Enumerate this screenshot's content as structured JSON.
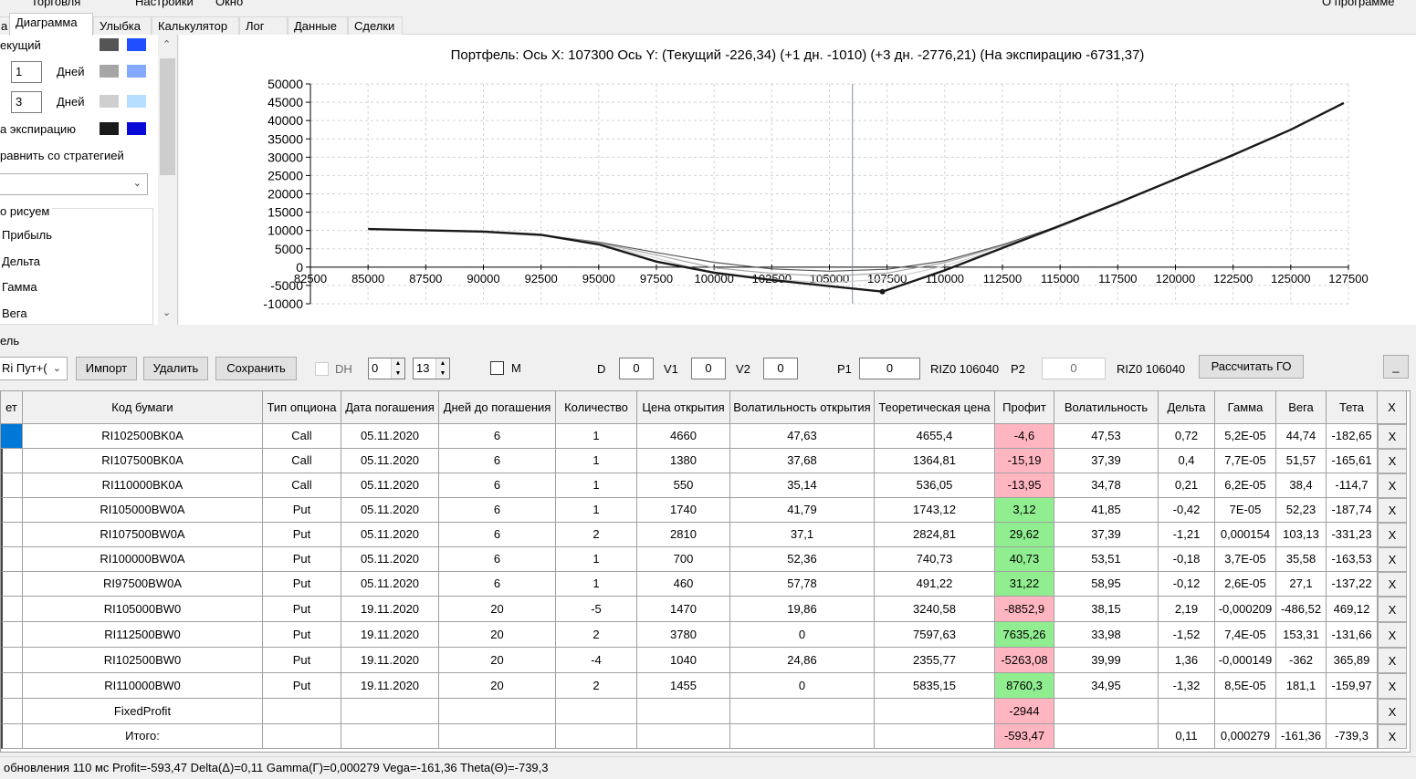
{
  "menu": {
    "items": [
      "Торговля",
      "Настройки",
      "Окно"
    ],
    "about": "О программе"
  },
  "tabs": [
    {
      "label": "а",
      "active": false
    },
    {
      "label": "Диаграмма",
      "active": true
    },
    {
      "label": "Улыбка",
      "active": false
    },
    {
      "label": "Калькулятор",
      "active": false
    },
    {
      "label": "Лог",
      "active": false
    },
    {
      "label": "Данные",
      "active": false
    },
    {
      "label": "Сделки",
      "active": false
    }
  ],
  "left_panel": {
    "current_label": "екущий",
    "days1_value": "1",
    "days_label": "Дней",
    "days2_value": "3",
    "expiry_label": "а экспирацию",
    "compare_label": "равнить со стратегией",
    "compare_select": "",
    "draw_label": "о рисуем",
    "draw_items": [
      "Прибыль",
      "Дельта",
      "Гамма",
      "Вега"
    ],
    "swatches": [
      {
        "a": "#555555",
        "b": "#1f4fff"
      },
      {
        "a": "#a6a6a6",
        "b": "#85a9ff"
      },
      {
        "a": "#cfcfcf",
        "b": "#b6deff"
      },
      {
        "a": "#1a1a1a",
        "b": "#0a0ad8"
      }
    ]
  },
  "chart_title": "Портфель: Ось X: 107300 Ось Y:  (Текущий -226,34)  (+1 дн. -1010)  (+3 дн. -2776,21)  (На экспирацию -6731,37)",
  "chart_data": {
    "type": "line",
    "xlim": [
      82500,
      127500
    ],
    "ylim": [
      -10000,
      50000
    ],
    "x_ticks": [
      "82500",
      "85000",
      "87500",
      "90000",
      "92500",
      "95000",
      "97500",
      "100000",
      "102500",
      "105000",
      "107500",
      "110000",
      "112500",
      "115000",
      "117500",
      "120000",
      "122500",
      "125000",
      "127500"
    ],
    "y_ticks": [
      "50000",
      "45000",
      "40000",
      "35000",
      "30000",
      "25000",
      "20000",
      "15000",
      "10000",
      "5000",
      "0",
      "-5000",
      "-10000"
    ],
    "cursor_x": 106000,
    "series": [
      {
        "color": "#555555",
        "points": [
          [
            85000,
            10400
          ],
          [
            90000,
            9800
          ],
          [
            92500,
            8800
          ],
          [
            95000,
            6800
          ],
          [
            97500,
            4000
          ],
          [
            100000,
            1300
          ],
          [
            102500,
            -500
          ],
          [
            105000,
            -1100
          ],
          [
            107500,
            -600
          ],
          [
            110000,
            1700
          ],
          [
            112500,
            6100
          ],
          [
            115000,
            11300
          ],
          [
            117500,
            17500
          ],
          [
            120000,
            24000
          ],
          [
            122500,
            30600
          ],
          [
            125000,
            37500
          ],
          [
            127300,
            44800
          ]
        ]
      },
      {
        "color": "#a6a6a6",
        "points": [
          [
            85000,
            10400
          ],
          [
            90000,
            9800
          ],
          [
            92500,
            8900
          ],
          [
            95000,
            6600
          ],
          [
            97500,
            3300
          ],
          [
            100000,
            -200
          ],
          [
            102500,
            -1700
          ],
          [
            105000,
            -2500
          ],
          [
            107500,
            -1600
          ],
          [
            110000,
            1200
          ],
          [
            112500,
            5800
          ],
          [
            115000,
            11200
          ],
          [
            117500,
            17400
          ],
          [
            120000,
            24000
          ],
          [
            122500,
            30600
          ],
          [
            125000,
            37500
          ],
          [
            127300,
            44800
          ]
        ]
      },
      {
        "color": "#cfcfcf",
        "points": [
          [
            85000,
            10400
          ],
          [
            90000,
            9800
          ],
          [
            92500,
            9000
          ],
          [
            95000,
            6400
          ],
          [
            97500,
            2500
          ],
          [
            100000,
            -1800
          ],
          [
            102500,
            -3300
          ],
          [
            105000,
            -4300
          ],
          [
            107500,
            -3200
          ],
          [
            110000,
            300
          ],
          [
            112500,
            5200
          ],
          [
            115000,
            10900
          ],
          [
            117500,
            17300
          ],
          [
            120000,
            24000
          ],
          [
            122500,
            30600
          ],
          [
            125000,
            37500
          ],
          [
            127300,
            44800
          ]
        ]
      },
      {
        "color": "#1a1a1a",
        "points": [
          [
            85000,
            10400
          ],
          [
            90000,
            9700
          ],
          [
            92500,
            8800
          ],
          [
            95000,
            6200
          ],
          [
            97500,
            1500
          ],
          [
            100000,
            -1500
          ],
          [
            102500,
            -3500
          ],
          [
            105000,
            -5200
          ],
          [
            107300,
            -6700
          ],
          [
            110000,
            -900
          ],
          [
            112500,
            5200
          ],
          [
            115000,
            11300
          ],
          [
            117500,
            17500
          ],
          [
            120000,
            24000
          ],
          [
            122500,
            30600
          ],
          [
            125000,
            37500
          ],
          [
            127300,
            44800
          ]
        ]
      }
    ]
  },
  "toolbar": {
    "section_label": "ель",
    "strategy_select": "Ri Пут+(",
    "import_label": "Импорт",
    "delete_label": "Удалить",
    "save_label": "Сохранить",
    "dh_label": "DH",
    "spin1": "0",
    "spin2": "13",
    "m_label": "M",
    "d_label": "D",
    "d_value": "0",
    "v1_label": "V1",
    "v1_value": "0",
    "v2_label": "V2",
    "v2_value": "0",
    "p1_label": "P1",
    "p1_value": "0",
    "p1_code": "RIZ0 106040",
    "p2_label": "P2",
    "p2_value": "0",
    "p2_code": "RIZ0 106040",
    "calc_go_label": "Рассчитать ГО",
    "minimize_label": "_"
  },
  "table": {
    "headers": [
      "ет",
      "Код бумаги",
      "Тип опциона",
      "Дата погашения",
      "Дней до погашения",
      "Количество",
      "Цена открытия",
      "Волатильность открытия",
      "Теоретическая цена",
      "Профит",
      "Волатильность",
      "Дельта",
      "Гамма",
      "Вега",
      "Тета",
      "X"
    ],
    "rows": [
      [
        "",
        "RI102500BK0A",
        "Call",
        "05.11.2020",
        "6",
        "1",
        "4660",
        "47,63",
        "4655,4",
        "-4,6",
        "47,53",
        "0,72",
        "5,2E-05",
        "44,74",
        "-182,65",
        "X"
      ],
      [
        "",
        "RI107500BK0A",
        "Call",
        "05.11.2020",
        "6",
        "1",
        "1380",
        "37,68",
        "1364,81",
        "-15,19",
        "37,39",
        "0,4",
        "7,7E-05",
        "51,57",
        "-165,61",
        "X"
      ],
      [
        "",
        "RI110000BK0A",
        "Call",
        "05.11.2020",
        "6",
        "1",
        "550",
        "35,14",
        "536,05",
        "-13,95",
        "34,78",
        "0,21",
        "6,2E-05",
        "38,4",
        "-114,7",
        "X"
      ],
      [
        "",
        "RI105000BW0A",
        "Put",
        "05.11.2020",
        "6",
        "1",
        "1740",
        "41,79",
        "1743,12",
        "3,12",
        "41,85",
        "-0,42",
        "7E-05",
        "52,23",
        "-187,74",
        "X"
      ],
      [
        "",
        "RI107500BW0A",
        "Put",
        "05.11.2020",
        "6",
        "2",
        "2810",
        "37,1",
        "2824,81",
        "29,62",
        "37,39",
        "-1,21",
        "0,000154",
        "103,13",
        "-331,23",
        "X"
      ],
      [
        "",
        "RI100000BW0A",
        "Put",
        "05.11.2020",
        "6",
        "1",
        "700",
        "52,36",
        "740,73",
        "40,73",
        "53,51",
        "-0,18",
        "3,7E-05",
        "35,58",
        "-163,53",
        "X"
      ],
      [
        "",
        "RI97500BW0A",
        "Put",
        "05.11.2020",
        "6",
        "1",
        "460",
        "57,78",
        "491,22",
        "31,22",
        "58,95",
        "-0,12",
        "2,6E-05",
        "27,1",
        "-137,22",
        "X"
      ],
      [
        "",
        "RI105000BW0",
        "Put",
        "19.11.2020",
        "20",
        "-5",
        "1470",
        "19,86",
        "3240,58",
        "-8852,9",
        "38,15",
        "2,19",
        "-0,000209",
        "-486,52",
        "469,12",
        "X"
      ],
      [
        "",
        "RI112500BW0",
        "Put",
        "19.11.2020",
        "20",
        "2",
        "3780",
        "0",
        "7597,63",
        "7635,26",
        "33,98",
        "-1,52",
        "7,4E-05",
        "153,31",
        "-131,66",
        "X"
      ],
      [
        "",
        "RI102500BW0",
        "Put",
        "19.11.2020",
        "20",
        "-4",
        "1040",
        "24,86",
        "2355,77",
        "-5263,08",
        "39,99",
        "1,36",
        "-0,000149",
        "-362",
        "365,89",
        "X"
      ],
      [
        "",
        "RI110000BW0",
        "Put",
        "19.11.2020",
        "20",
        "2",
        "1455",
        "0",
        "5835,15",
        "8760,3",
        "34,95",
        "-1,32",
        "8,5E-05",
        "181,1",
        "-159,97",
        "X"
      ],
      [
        "",
        "FixedProfit",
        "",
        "",
        "",
        "",
        "",
        "",
        "",
        "-2944",
        "",
        "",
        "",
        "",
        "",
        "X"
      ],
      [
        "",
        "Итого:",
        "",
        "",
        "",
        "",
        "",
        "",
        "",
        "-593,47",
        "",
        "0,11",
        "0,000279",
        "-161,36",
        "-739,3",
        "X"
      ]
    ],
    "profit_status": [
      "neg",
      "neg",
      "neg",
      "pos",
      "pos",
      "pos",
      "pos",
      "neg",
      "pos",
      "neg",
      "pos",
      "neg",
      "neg"
    ]
  },
  "status_text": "обновления 110 мс  Profit=-593,47 Delta(Δ)=0,11 Gamma(Γ)=0,000279 Vega=-161,36 Theta(Θ)=-739,3"
}
